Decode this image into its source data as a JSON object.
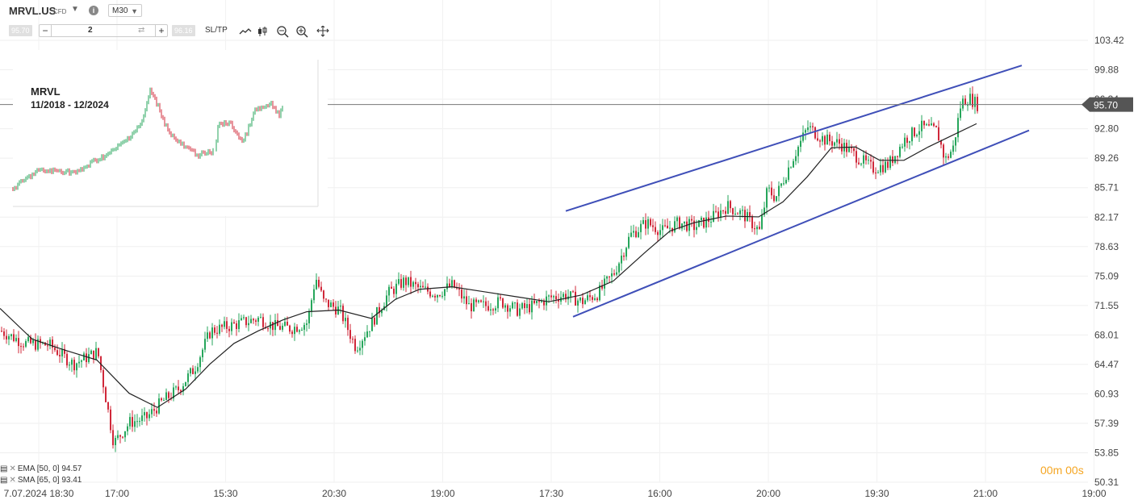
{
  "header": {
    "symbol": "MRVL.US",
    "instrument_type": "CFD",
    "timeframe": "M30",
    "sell_price": "95.70",
    "buy_price": "96.16",
    "volume": "2",
    "sltp_label": "SL/TP"
  },
  "icons": [
    "chevron-down-icon",
    "info-icon",
    "minus-icon",
    "plus-icon",
    "swap-icon",
    "line-chart-icon",
    "candles-icon",
    "zoom-out-icon",
    "zoom-in-icon",
    "crosshair-icon"
  ],
  "indicators": [
    {
      "label": "EMA [50, 0] 94.57"
    },
    {
      "label": "SMA [65, 0] 93.41"
    }
  ],
  "countdown": "00m 00s",
  "current_price_label": "95.70",
  "colors": {
    "bull": "#26a65b",
    "bear": "#d0283a",
    "channel": "#3f4fb8",
    "ma": "#222222",
    "countdown": "#f5a623",
    "price_tag": "#555555"
  },
  "inset": {
    "title_line1": "MRVL",
    "title_line2": "11/2018 - 12/2024"
  },
  "chart_data": {
    "type": "candlestick",
    "y_axis_ticks": [
      "103.42",
      "99.88",
      "96.34",
      "92.80",
      "89.26",
      "85.71",
      "82.17",
      "78.63",
      "75.09",
      "71.55",
      "68.01",
      "64.47",
      "60.93",
      "57.39",
      "53.85",
      "50.31"
    ],
    "x_axis_ticks": [
      "7.07.2024 18:30",
      "17:00",
      "15:30",
      "20:30",
      "19:00",
      "17:30",
      "16:00",
      "20:00",
      "19:30",
      "21:00",
      "19:00"
    ],
    "ylim": [
      50.31,
      103.42
    ],
    "current_price": 95.7,
    "trend_channel": {
      "upper": [
        [
          82.9,
          100.4
        ]
      ],
      "lower": [
        [
          70.2,
          92.6
        ]
      ]
    },
    "close_path": [
      [
        0,
        68.5
      ],
      [
        30,
        67.0
      ],
      [
        60,
        66.8
      ],
      [
        90,
        64.5
      ],
      [
        120,
        66.0
      ],
      [
        140,
        55.0
      ],
      [
        160,
        57.5
      ],
      [
        180,
        58.0
      ],
      [
        200,
        60.0
      ],
      [
        220,
        61.5
      ],
      [
        240,
        64.0
      ],
      [
        260,
        68.5
      ],
      [
        280,
        69.0
      ],
      [
        300,
        69.5
      ],
      [
        320,
        70.0
      ],
      [
        340,
        69.0
      ],
      [
        360,
        68.8
      ],
      [
        380,
        69.5
      ],
      [
        390,
        75.0
      ],
      [
        400,
        72.0
      ],
      [
        420,
        71.0
      ],
      [
        440,
        66.5
      ],
      [
        460,
        69.5
      ],
      [
        480,
        73.0
      ],
      [
        500,
        74.5
      ],
      [
        520,
        73.5
      ],
      [
        540,
        73.0
      ],
      [
        560,
        74.0
      ],
      [
        580,
        71.5
      ],
      [
        600,
        71.5
      ],
      [
        620,
        72.0
      ],
      [
        640,
        71.0
      ],
      [
        660,
        71.5
      ],
      [
        680,
        72.5
      ],
      [
        700,
        72.8
      ],
      [
        720,
        72.0
      ],
      [
        740,
        73.0
      ],
      [
        760,
        75.5
      ],
      [
        780,
        80.0
      ],
      [
        800,
        81.5
      ],
      [
        820,
        80.5
      ],
      [
        840,
        81.5
      ],
      [
        860,
        81.0
      ],
      [
        880,
        82.0
      ],
      [
        900,
        83.5
      ],
      [
        920,
        82.5
      ],
      [
        940,
        80.5
      ],
      [
        950,
        85.5
      ],
      [
        960,
        84.5
      ],
      [
        980,
        89.0
      ],
      [
        1000,
        93.0
      ],
      [
        1020,
        91.5
      ],
      [
        1040,
        91.0
      ],
      [
        1060,
        89.5
      ],
      [
        1080,
        88.0
      ],
      [
        1100,
        88.5
      ],
      [
        1120,
        91.5
      ],
      [
        1140,
        93.0
      ],
      [
        1160,
        92.5
      ],
      [
        1170,
        89.0
      ],
      [
        1180,
        90.5
      ],
      [
        1190,
        96.0
      ],
      [
        1200,
        96.5
      ],
      [
        1210,
        95.7
      ]
    ],
    "ema_path": [
      [
        0,
        71.2
      ],
      [
        40,
        67.5
      ],
      [
        80,
        66.2
      ],
      [
        120,
        65.0
      ],
      [
        160,
        61.0
      ],
      [
        195,
        59.3
      ],
      [
        230,
        61.5
      ],
      [
        260,
        64.5
      ],
      [
        290,
        67.0
      ],
      [
        320,
        68.5
      ],
      [
        350,
        69.8
      ],
      [
        380,
        70.8
      ],
      [
        420,
        71.0
      ],
      [
        460,
        70.0
      ],
      [
        490,
        72.3
      ],
      [
        520,
        73.5
      ],
      [
        560,
        73.8
      ],
      [
        600,
        73.2
      ],
      [
        640,
        72.6
      ],
      [
        680,
        72.0
      ],
      [
        720,
        72.8
      ],
      [
        760,
        74.5
      ],
      [
        800,
        78.0
      ],
      [
        830,
        80.5
      ],
      [
        860,
        81.5
      ],
      [
        900,
        82.3
      ],
      [
        940,
        82.2
      ],
      [
        970,
        84.0
      ],
      [
        1000,
        87.0
      ],
      [
        1030,
        90.5
      ],
      [
        1060,
        90.6
      ],
      [
        1090,
        89.0
      ],
      [
        1120,
        89.0
      ],
      [
        1150,
        90.6
      ],
      [
        1180,
        92.0
      ],
      [
        1210,
        93.4
      ]
    ]
  }
}
